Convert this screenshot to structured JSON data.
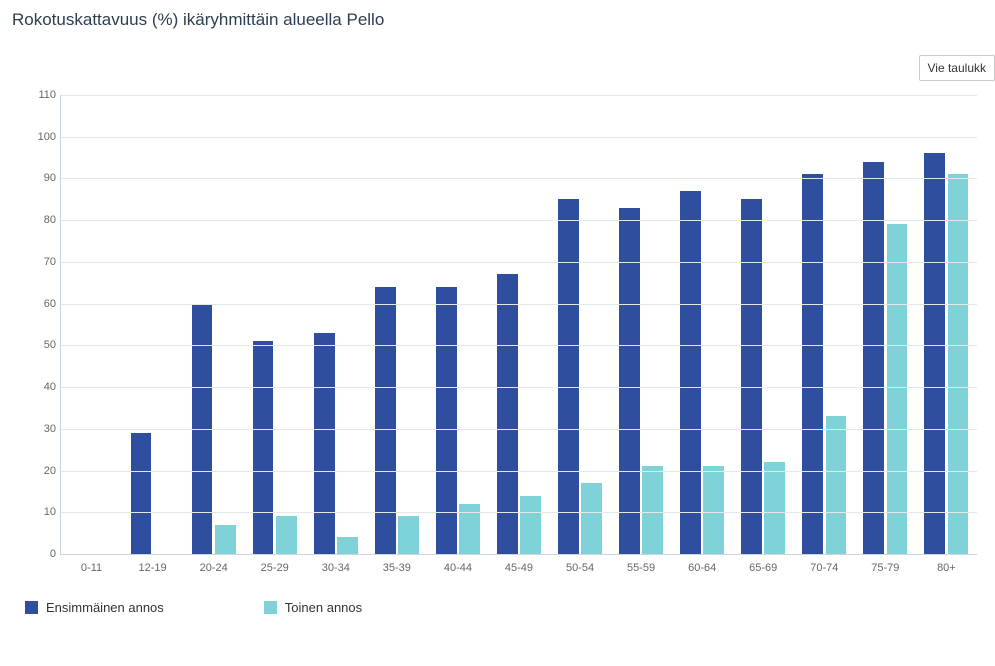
{
  "title": "Rokotuskattavuus (%) ikäryhmittäin alueella Pello",
  "export_button": "Vie taulukk",
  "chart": {
    "type": "bar",
    "ylim": [
      0,
      110
    ],
    "ytick_step": 10,
    "grid_color": "#e6e6e6",
    "axis_color": "#ccd6dd",
    "background_color": "#ffffff",
    "label_color": "#666666",
    "label_fontsize": 11,
    "categories": [
      "0-11",
      "12-19",
      "20-24",
      "25-29",
      "30-34",
      "35-39",
      "40-44",
      "45-49",
      "50-54",
      "55-59",
      "60-64",
      "65-69",
      "70-74",
      "75-79",
      "80+"
    ],
    "series": [
      {
        "name": "Ensimmäinen annos",
        "color": "#2f4e9e",
        "values": [
          0,
          29,
          60,
          51,
          53,
          64,
          64,
          67,
          85,
          83,
          87,
          85,
          91,
          94,
          96
        ]
      },
      {
        "name": "Toinen annos",
        "color": "#7fd3d8",
        "values": [
          0,
          0,
          7,
          9,
          4,
          9,
          12,
          14,
          17,
          21,
          21,
          22,
          33,
          79,
          91
        ]
      }
    ],
    "bar_group_width": 0.68
  }
}
